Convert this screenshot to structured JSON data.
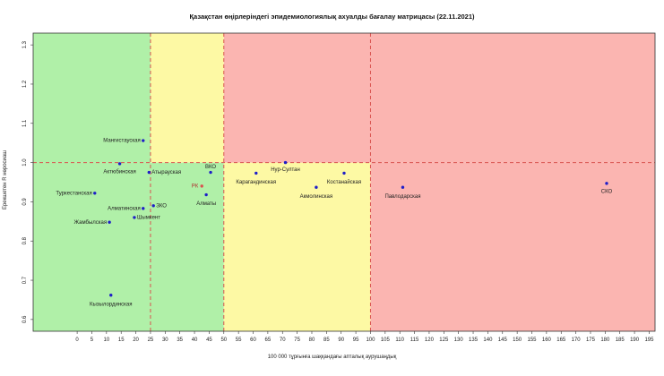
{
  "chart_data": {
    "type": "scatter",
    "title": "Қазақстан өңірлеріндегі эпидемиологиялық ахуалды бағалау матрицасы  (22.11.2021)",
    "xlabel": "100 000 тұрғынға шаққандағы апталық аурушаңдық",
    "ylabel": "Ерекшетен R нөросиаш",
    "xlim": [
      -15,
      197
    ],
    "ylim": [
      0.57,
      1.33
    ],
    "x_ticks": [
      0,
      5,
      10,
      15,
      20,
      25,
      30,
      35,
      40,
      45,
      50,
      55,
      60,
      65,
      70,
      75,
      80,
      85,
      90,
      95,
      100,
      105,
      110,
      115,
      120,
      125,
      130,
      135,
      140,
      145,
      150,
      155,
      160,
      165,
      170,
      175,
      180,
      185,
      190,
      195
    ],
    "y_ticks": [
      0.6,
      0.7,
      0.8,
      0.9,
      1.0,
      1.1,
      1.2,
      1.3
    ],
    "thresholds": {
      "x": [
        25,
        50,
        100
      ],
      "y": 1.0
    },
    "zones": [
      {
        "x": [
          -15,
          25
        ],
        "y": [
          1.0,
          1.33
        ],
        "color": "#b0f0a8"
      },
      {
        "x": [
          -15,
          50
        ],
        "y": [
          0.57,
          1.0
        ],
        "color": "#b0f0a8"
      },
      {
        "x": [
          25,
          50
        ],
        "y": [
          1.0,
          1.33
        ],
        "color": "#fdf9a4"
      },
      {
        "x": [
          50,
          100
        ],
        "y": [
          0.57,
          1.0
        ],
        "color": "#fdf9a4"
      },
      {
        "x": [
          50,
          197
        ],
        "y": [
          1.0,
          1.33
        ],
        "color": "#fbb5b1"
      },
      {
        "x": [
          100,
          197
        ],
        "y": [
          0.57,
          1.0
        ],
        "color": "#fbb5b1"
      }
    ],
    "point_color": "#1e1ec8",
    "highlight_color": "#d9534f",
    "line_color": "#d9534f",
    "grid": false,
    "points": [
      {
        "label": "Мангистауская",
        "x": 22.5,
        "y": 1.056,
        "anchor": "end",
        "dx": -3,
        "dy": 0
      },
      {
        "label": "Актюбинская",
        "x": 14.5,
        "y": 0.997,
        "anchor": "middle",
        "dx": 0,
        "dy": 9
      },
      {
        "label": "Атырауская",
        "x": 24.5,
        "y": 0.975,
        "anchor": "start",
        "dx": 3,
        "dy": 0
      },
      {
        "label": "ВКО",
        "x": 45.5,
        "y": 0.975,
        "anchor": "middle",
        "dx": 0,
        "dy": -6
      },
      {
        "label": "РК",
        "x": 42.5,
        "y": 0.94,
        "anchor": "end",
        "dx": -4,
        "dy": 0,
        "highlight": true
      },
      {
        "label": "Алматы",
        "x": 44.0,
        "y": 0.918,
        "anchor": "middle",
        "dx": 0,
        "dy": 10
      },
      {
        "label": "Туркестанская",
        "x": 6.0,
        "y": 0.922,
        "anchor": "end",
        "dx": -3,
        "dy": 0
      },
      {
        "label": "Алматинская",
        "x": 22.5,
        "y": 0.883,
        "anchor": "end",
        "dx": -3,
        "dy": 0
      },
      {
        "label": "ЗКО",
        "x": 26.0,
        "y": 0.89,
        "anchor": "start",
        "dx": 3,
        "dy": 0
      },
      {
        "label": "Шымкент",
        "x": 19.5,
        "y": 0.86,
        "anchor": "start",
        "dx": 3,
        "dy": 0
      },
      {
        "label": "Жамбылская",
        "x": 11.0,
        "y": 0.848,
        "anchor": "end",
        "dx": -3,
        "dy": 0
      },
      {
        "label": "Кызылординская",
        "x": 11.5,
        "y": 0.662,
        "anchor": "middle",
        "dx": 0,
        "dy": 10
      },
      {
        "label": "Карагандинская",
        "x": 61.0,
        "y": 0.973,
        "anchor": "middle",
        "dx": 0,
        "dy": 10
      },
      {
        "label": "Нур-Султан",
        "x": 71.0,
        "y": 1.0,
        "anchor": "middle",
        "dx": 0,
        "dy": 8
      },
      {
        "label": "Костанайская",
        "x": 91.0,
        "y": 0.973,
        "anchor": "middle",
        "dx": 0,
        "dy": 10
      },
      {
        "label": "Акмолинская",
        "x": 81.5,
        "y": 0.937,
        "anchor": "middle",
        "dx": 0,
        "dy": 10
      },
      {
        "label": "Павлодарская",
        "x": 111.0,
        "y": 0.937,
        "anchor": "middle",
        "dx": 0,
        "dy": 10
      },
      {
        "label": "СКО",
        "x": 180.5,
        "y": 0.947,
        "anchor": "middle",
        "dx": 0,
        "dy": 9
      }
    ]
  }
}
